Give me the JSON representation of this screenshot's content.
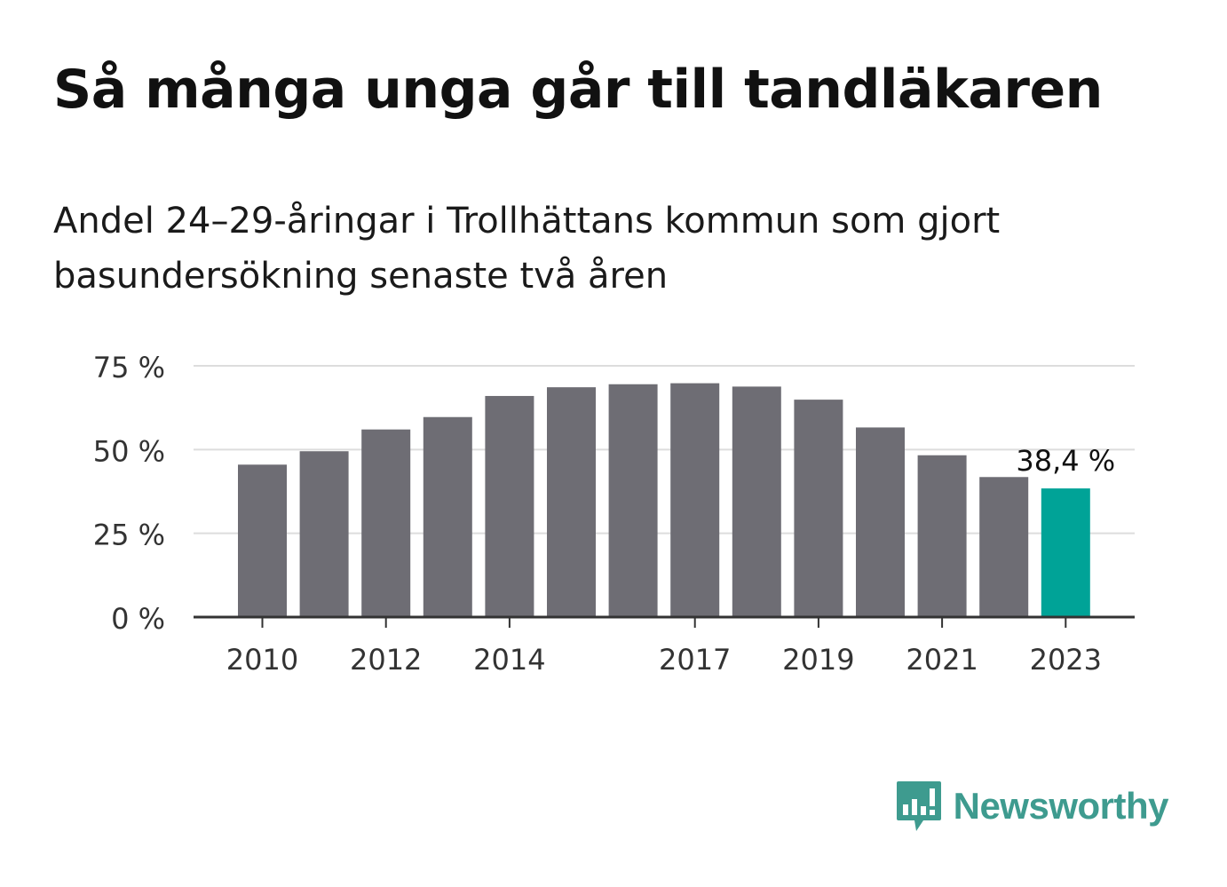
{
  "title": "Så många unga går till tandläkaren",
  "subtitle": "Andel 24–29-åringar i Trollhättans kommun som gjort basundersökning senaste två åren",
  "brand": {
    "name": "Newsworthy",
    "icon": "newsworthy-logo-icon"
  },
  "colors": {
    "bar": "#6e6d74",
    "highlight": "#00a397",
    "grid": "#dddddd",
    "axis": "#333333",
    "text": "#333333"
  },
  "chart_data": {
    "type": "bar",
    "categories": [
      "2010",
      "2011",
      "2012",
      "2013",
      "2014",
      "2015",
      "2016",
      "2017",
      "2018",
      "2019",
      "2020",
      "2021",
      "2022",
      "2023"
    ],
    "values": [
      45.5,
      49.5,
      56.0,
      59.7,
      66.0,
      68.6,
      69.5,
      69.8,
      68.8,
      64.9,
      56.6,
      48.3,
      41.8,
      38.4
    ],
    "tick_labels_x": [
      "2010",
      "2012",
      "2014",
      "2017",
      "2019",
      "2021",
      "2023"
    ],
    "y_ticks": [
      0,
      25,
      50,
      75
    ],
    "y_tick_labels": [
      "0 %",
      "25 %",
      "50 %",
      "75 %"
    ],
    "ylim": [
      0,
      75
    ],
    "highlight_category": "2023",
    "data_label": "38,4 %",
    "grid": true
  }
}
